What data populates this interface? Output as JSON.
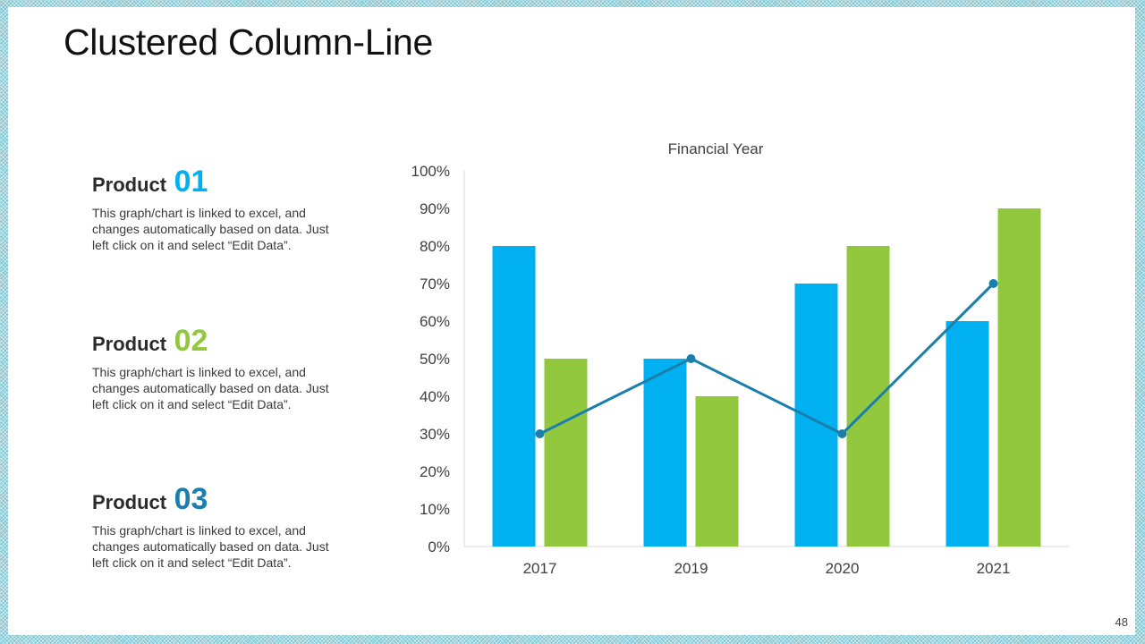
{
  "slide": {
    "title": "Clustered Column-Line",
    "page_number": "48"
  },
  "products": [
    {
      "label": "Product",
      "number": "01",
      "color": "#00b0f0",
      "description": [
        "This graph/chart is linked to excel, and",
        "changes automatically based on data. Just",
        "left click on it and select “Edit Data”."
      ]
    },
    {
      "label": "Product",
      "number": "02",
      "color": "#92c83e",
      "description": [
        "This graph/chart is linked to excel, and",
        "changes automatically based on data. Just",
        "left click on it and select “Edit Data”."
      ]
    },
    {
      "label": "Product",
      "number": "03",
      "color": "#1b7fad",
      "description": [
        "This graph/chart is linked to excel, and",
        "changes automatically based on data. Just",
        "left click on it and select “Edit Data”."
      ]
    }
  ],
  "chart_data": {
    "type": "bar",
    "title": "Financial Year",
    "categories": [
      "2017",
      "2019",
      "2020",
      "2021"
    ],
    "series": [
      {
        "type": "bar",
        "color": "#00b0f0",
        "values": [
          80,
          50,
          70,
          60
        ]
      },
      {
        "type": "bar",
        "color": "#92c83e",
        "values": [
          50,
          40,
          80,
          90
        ]
      },
      {
        "type": "line",
        "color": "#1b7fad",
        "values": [
          30,
          50,
          30,
          70
        ]
      }
    ],
    "ylim": [
      0,
      100
    ],
    "yticks": [
      "0%",
      "10%",
      "20%",
      "30%",
      "40%",
      "50%",
      "60%",
      "70%",
      "80%",
      "90%",
      "100%"
    ],
    "grid": false,
    "legend": "none"
  }
}
